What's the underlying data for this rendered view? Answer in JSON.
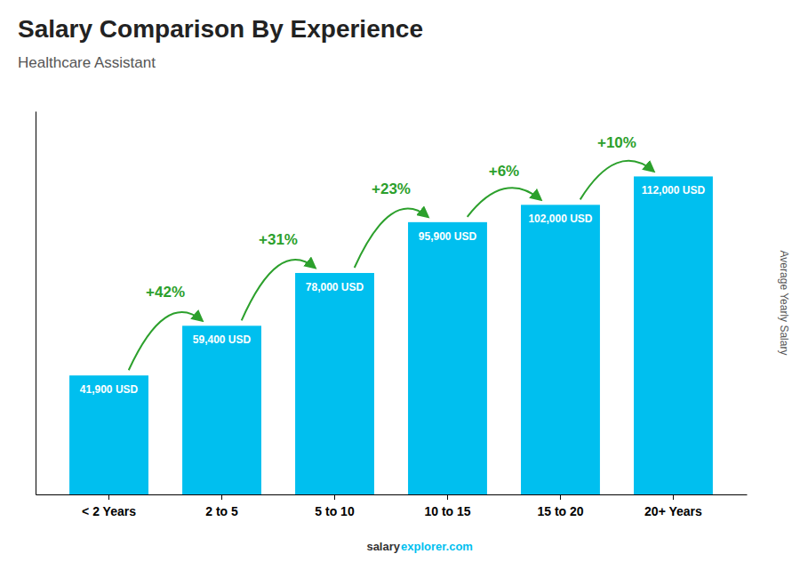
{
  "chart_data": {
    "type": "bar",
    "title": "Salary Comparison By Experience",
    "subtitle": "Healthcare Assistant",
    "ylabel": "Average Yearly Salary",
    "categories": [
      "< 2 Years",
      "2 to 5",
      "5 to 10",
      "10 to 15",
      "15 to 20",
      "20+ Years"
    ],
    "values": [
      41900,
      59400,
      78000,
      95900,
      102000,
      112000
    ],
    "value_labels": [
      "41,900 USD",
      "59,400 USD",
      "78,000 USD",
      "95,900 USD",
      "102,000 USD",
      "112,000 USD"
    ],
    "data_labels": true,
    "annotations": [
      "+42%",
      "+31%",
      "+23%",
      "+6%",
      "+10%"
    ],
    "footer": [
      "salary",
      "explorer.com"
    ],
    "color": "#00BFEF",
    "ylim": [
      0,
      135000
    ],
    "tick_labels": "x",
    "grid": false
  }
}
